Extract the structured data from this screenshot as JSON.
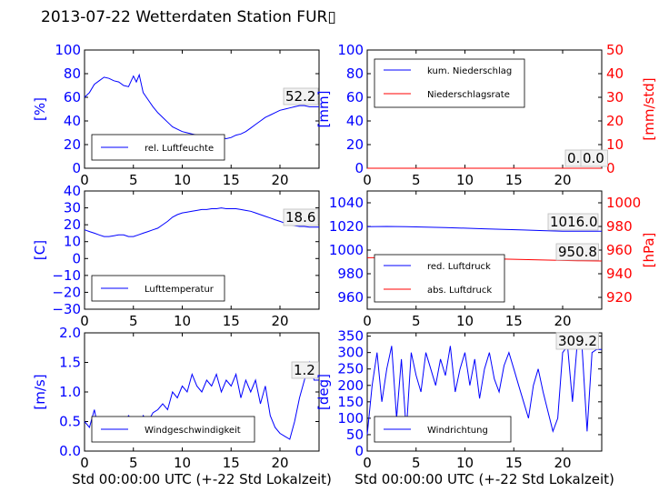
{
  "title": "2013-07-22 Wetterdaten Station FUR▯",
  "chart_data": [
    {
      "type": "line",
      "ylabel": "[%]",
      "xlim": [
        0,
        24
      ],
      "ylim": [
        0,
        100
      ],
      "xticks": [
        "0",
        "5",
        "10",
        "15",
        "20"
      ],
      "yticks": [
        "0",
        "20",
        "40",
        "60",
        "80",
        "100"
      ],
      "series": [
        {
          "name": "rel. Luftfeuchte",
          "color": "#0000ff",
          "x": [
            0,
            0.5,
            1,
            1.5,
            2,
            2.5,
            3,
            3.5,
            4,
            4.5,
            5,
            5.3,
            5.6,
            6,
            6.5,
            7,
            7.5,
            8,
            8.5,
            9,
            9.5,
            10,
            10.5,
            11,
            11.5,
            12,
            12.5,
            13,
            13.5,
            14,
            14.5,
            15,
            15.5,
            16,
            16.5,
            17,
            17.5,
            18,
            18.5,
            19,
            19.5,
            20,
            20.5,
            21,
            21.5,
            22,
            22.5,
            23,
            23.5,
            24
          ],
          "y": [
            60,
            64,
            71,
            74,
            77,
            76,
            74,
            73,
            70,
            69,
            78,
            73,
            79,
            64,
            58,
            52,
            47,
            43,
            39,
            35,
            33,
            31,
            30,
            29,
            28,
            28,
            27,
            27,
            26,
            26,
            25,
            26,
            28,
            29,
            31,
            34,
            37,
            40,
            43,
            45,
            47,
            49,
            50,
            51,
            52,
            53,
            53,
            52,
            52,
            52
          ]
        }
      ],
      "value_label": "52.2"
    },
    {
      "type": "line",
      "ylabel": "[mm]",
      "ylabel_right": "[mm/std]",
      "xlim": [
        0,
        24
      ],
      "ylim": [
        0,
        100
      ],
      "ylim_right": [
        0,
        50
      ],
      "xticks": [
        "0",
        "5",
        "10",
        "15",
        "20"
      ],
      "yticks": [
        "0",
        "20",
        "40",
        "60",
        "80",
        "100"
      ],
      "yticks_right": [
        "0",
        "10",
        "20",
        "30",
        "40",
        "50"
      ],
      "series": [
        {
          "name": "kum. Niederschlag",
          "color": "#0000ff",
          "x": [
            0,
            24
          ],
          "y": [
            0,
            0
          ]
        },
        {
          "name": "Niederschlagsrate",
          "color": "#ff0000",
          "x": [
            0,
            24
          ],
          "y": [
            0,
            0
          ]
        }
      ],
      "value_label": "0.0",
      "value_label_2": "0.0"
    },
    {
      "type": "line",
      "ylabel": "[C]",
      "xlim": [
        0,
        24
      ],
      "ylim": [
        -30,
        40
      ],
      "xticks": [
        "0",
        "5",
        "10",
        "15",
        "20"
      ],
      "yticks": [
        "−30",
        "−20",
        "−10",
        "0",
        "10",
        "20",
        "30",
        "40"
      ],
      "series": [
        {
          "name": "Lufttemperatur",
          "color": "#0000ff",
          "x": [
            0,
            0.5,
            1,
            1.5,
            2,
            2.5,
            3,
            3.5,
            4,
            4.5,
            5,
            5.5,
            6,
            6.5,
            7,
            7.5,
            8,
            8.5,
            9,
            9.5,
            10,
            10.5,
            11,
            11.5,
            12,
            12.5,
            13,
            13.5,
            14,
            14.5,
            15,
            15.5,
            16,
            16.5,
            17,
            17.5,
            18,
            18.5,
            19,
            19.5,
            20,
            20.5,
            21,
            21.5,
            22,
            22.5,
            23,
            23.5,
            24
          ],
          "y": [
            17,
            16,
            15,
            14,
            13,
            13,
            13.5,
            14,
            14,
            13,
            13,
            14,
            15,
            16,
            17,
            18,
            20,
            22,
            24.5,
            26,
            27,
            27.5,
            28,
            28.5,
            29,
            29,
            29.5,
            29.5,
            30,
            29.5,
            29.5,
            29.5,
            29,
            28.5,
            28,
            27,
            26,
            25,
            24,
            23,
            22,
            21,
            20,
            19.5,
            19,
            19,
            18.6,
            18.6,
            18.6
          ]
        }
      ],
      "value_label": "18.6"
    },
    {
      "type": "line",
      "ylabel_right": "[hPa]",
      "xlim": [
        0,
        24
      ],
      "ylim": [
        950,
        1050
      ],
      "ylim_right": [
        910,
        1010
      ],
      "xticks": [
        "0",
        "5",
        "10",
        "15",
        "20"
      ],
      "yticks": [
        "960",
        "980",
        "1000",
        "1020",
        "1040"
      ],
      "yticks_right": [
        "920",
        "940",
        "960",
        "980",
        "1000"
      ],
      "series": [
        {
          "name": "red. Luftdruck",
          "color": "#0000ff",
          "x": [
            0,
            2,
            4,
            6,
            8,
            10,
            12,
            14,
            16,
            18,
            20,
            22,
            24
          ],
          "y": [
            1019.8,
            1020,
            1019.8,
            1019.5,
            1019,
            1018.5,
            1018,
            1017.5,
            1017,
            1016.5,
            1016,
            1016,
            1016.0
          ]
        },
        {
          "name": "abs. Luftdruck",
          "color": "#ff0000",
          "x": [
            0,
            2,
            4,
            6,
            8,
            10,
            12,
            14,
            16,
            18,
            20,
            22,
            24
          ],
          "y": [
            953.5,
            953.7,
            953.6,
            953.8,
            953.5,
            953.2,
            952.8,
            952.4,
            952,
            951.6,
            951.2,
            950.9,
            950.8
          ]
        }
      ],
      "value_label": "1016.0",
      "value_label_2": "950.8"
    },
    {
      "type": "line",
      "ylabel": "[m/s]",
      "xlabel": "Std 00:00:00 UTC (+-22 Std Lokalzeit)",
      "xlim": [
        0,
        24
      ],
      "ylim": [
        0,
        2
      ],
      "xticks": [
        "0",
        "5",
        "10",
        "15",
        "20"
      ],
      "yticks": [
        "0.0",
        "0.5",
        "1.0",
        "1.5",
        "2.0"
      ],
      "series": [
        {
          "name": "Windgeschwindigkeit",
          "color": "#0000ff",
          "x": [
            0,
            0.5,
            1,
            1.5,
            2,
            2.5,
            3,
            3.5,
            4,
            4.5,
            5,
            5.5,
            6,
            6.5,
            7,
            7.5,
            8,
            8.5,
            9,
            9.5,
            10,
            10.5,
            11,
            11.5,
            12,
            12.5,
            13,
            13.5,
            14,
            14.5,
            15,
            15.5,
            16,
            16.5,
            17,
            17.5,
            18,
            18.5,
            19,
            19.5,
            20,
            20.5,
            21,
            21.5,
            22,
            22.5,
            23,
            23.5,
            24
          ],
          "y": [
            0.5,
            0.4,
            0.7,
            0.3,
            0.35,
            0.4,
            0.3,
            0.4,
            0.45,
            0.6,
            0.5,
            0.35,
            0.6,
            0.5,
            0.65,
            0.7,
            0.8,
            0.7,
            1.0,
            0.9,
            1.1,
            1.0,
            1.3,
            1.1,
            1.0,
            1.2,
            1.1,
            1.3,
            1.0,
            1.2,
            1.1,
            1.3,
            0.9,
            1.2,
            1.0,
            1.2,
            0.8,
            1.1,
            0.6,
            0.4,
            0.3,
            0.25,
            0.2,
            0.5,
            0.9,
            1.2,
            1.5,
            1.2,
            1.2
          ]
        }
      ],
      "value_label": "1.2"
    },
    {
      "type": "line",
      "ylabel": "[deg]",
      "xlabel": "Std 00:00:00 UTC (+-22 Std Lokalzeit)",
      "xlim": [
        0,
        24
      ],
      "ylim": [
        0,
        360
      ],
      "xticks": [
        "0",
        "5",
        "10",
        "15",
        "20"
      ],
      "yticks": [
        "0",
        "50",
        "100",
        "150",
        "200",
        "250",
        "300",
        "350"
      ],
      "series": [
        {
          "name": "Windrichtung",
          "color": "#0000ff",
          "x": [
            0,
            0.5,
            1,
            1.5,
            2,
            2.5,
            3,
            3.5,
            4,
            4.5,
            5,
            5.5,
            6,
            6.5,
            7,
            7.5,
            8,
            8.5,
            9,
            9.5,
            10,
            10.5,
            11,
            11.5,
            12,
            12.5,
            13,
            13.5,
            14,
            14.5,
            15,
            15.5,
            16,
            16.5,
            17,
            17.5,
            18,
            18.5,
            19,
            19.5,
            20,
            20.5,
            21,
            21.5,
            22,
            22.5,
            23,
            23.5,
            24
          ],
          "y": [
            50,
            200,
            300,
            150,
            250,
            320,
            100,
            280,
            60,
            300,
            230,
            180,
            300,
            250,
            200,
            280,
            230,
            320,
            180,
            250,
            300,
            200,
            280,
            160,
            250,
            300,
            220,
            180,
            260,
            300,
            250,
            200,
            150,
            100,
            200,
            250,
            180,
            120,
            60,
            100,
            300,
            320,
            150,
            330,
            310,
            60,
            300,
            310,
            309.2
          ]
        }
      ],
      "value_label": "309.2"
    }
  ]
}
